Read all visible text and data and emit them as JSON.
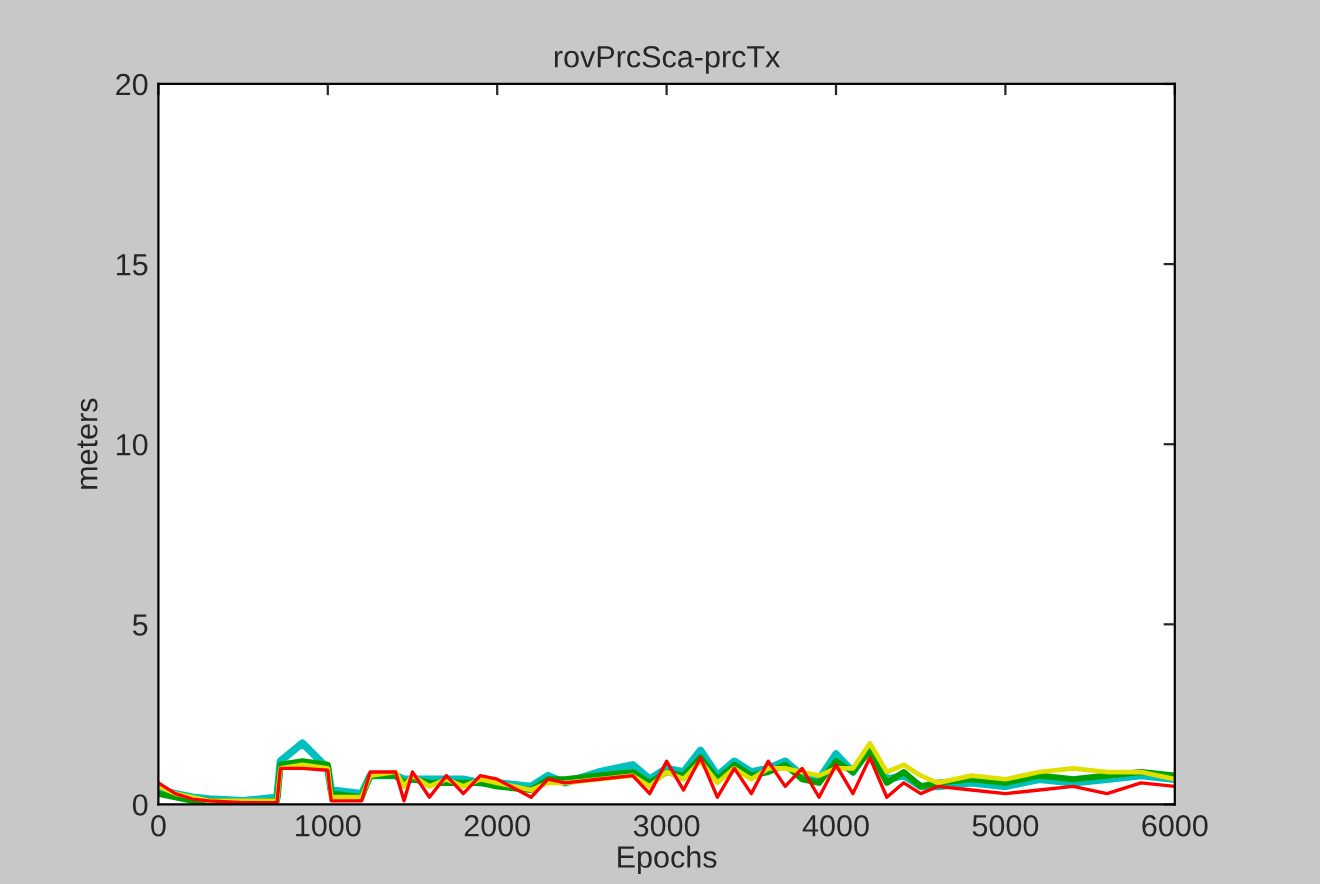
{
  "chart_data": {
    "type": "line",
    "title": "rovPrcSca-prcTx",
    "xlabel": "Epochs",
    "ylabel": "meters",
    "x": [
      0,
      100,
      200,
      300,
      500,
      700,
      720,
      850,
      1000,
      1020,
      1200,
      1250,
      1400,
      1450,
      1500,
      1600,
      1700,
      1800,
      1900,
      2000,
      2200,
      2300,
      2400,
      2600,
      2800,
      2900,
      3000,
      3100,
      3200,
      3300,
      3400,
      3500,
      3600,
      3700,
      3800,
      3900,
      4000,
      4100,
      4200,
      4300,
      4400,
      4500,
      4600,
      4800,
      5000,
      5200,
      5400,
      5600,
      5800,
      6000
    ],
    "series": [
      {
        "color": "#00bfbf",
        "values": [
          0.4,
          0.3,
          0.2,
          0.15,
          0.1,
          0.2,
          1.2,
          1.7,
          1.0,
          0.4,
          0.3,
          0.8,
          0.8,
          0.7,
          0.7,
          0.7,
          0.7,
          0.7,
          0.6,
          0.6,
          0.5,
          0.8,
          0.6,
          0.9,
          1.1,
          0.7,
          1.0,
          0.9,
          1.5,
          0.8,
          1.2,
          0.9,
          1.0,
          1.2,
          0.8,
          0.7,
          1.4,
          0.9,
          1.6,
          0.7,
          0.8,
          0.5,
          0.5,
          0.6,
          0.5,
          0.7,
          0.6,
          0.7,
          0.8,
          0.7
        ]
      },
      {
        "color": "#00a000",
        "values": [
          0.3,
          0.2,
          0.1,
          0.1,
          0.05,
          0.1,
          1.1,
          1.2,
          1.1,
          0.3,
          0.2,
          0.8,
          0.8,
          0.6,
          0.7,
          0.6,
          0.6,
          0.6,
          0.6,
          0.5,
          0.4,
          0.7,
          0.7,
          0.8,
          0.9,
          0.6,
          0.9,
          0.8,
          1.3,
          0.7,
          1.1,
          0.8,
          0.9,
          1.1,
          0.7,
          0.6,
          1.2,
          0.9,
          1.5,
          0.6,
          0.9,
          0.5,
          0.6,
          0.7,
          0.6,
          0.8,
          0.7,
          0.8,
          0.9,
          0.8
        ]
      },
      {
        "color": "#e0e000",
        "values": [
          0.5,
          0.3,
          0.2,
          0.1,
          0.1,
          0.1,
          1.0,
          1.1,
          1.0,
          0.2,
          0.2,
          0.8,
          0.9,
          0.5,
          0.8,
          0.5,
          0.7,
          0.5,
          0.7,
          0.6,
          0.4,
          0.6,
          0.6,
          0.7,
          0.8,
          0.5,
          0.9,
          0.7,
          1.2,
          0.6,
          1.0,
          0.7,
          1.0,
          1.0,
          0.9,
          0.8,
          1.0,
          1.0,
          1.7,
          0.9,
          1.1,
          0.8,
          0.6,
          0.8,
          0.7,
          0.9,
          1.0,
          0.9,
          0.9,
          0.7
        ]
      },
      {
        "color": "#ff0000",
        "values": [
          0.6,
          0.3,
          0.15,
          0.1,
          0.05,
          0.05,
          1.0,
          1.0,
          0.95,
          0.1,
          0.1,
          0.9,
          0.9,
          0.1,
          0.9,
          0.2,
          0.8,
          0.3,
          0.8,
          0.7,
          0.2,
          0.7,
          0.6,
          0.7,
          0.8,
          0.3,
          1.2,
          0.4,
          1.3,
          0.2,
          1.0,
          0.3,
          1.2,
          0.5,
          1.0,
          0.2,
          1.1,
          0.3,
          1.3,
          0.2,
          0.6,
          0.3,
          0.5,
          0.4,
          0.3,
          0.4,
          0.5,
          0.3,
          0.6,
          0.5
        ]
      }
    ],
    "xlim": [
      0,
      6000
    ],
    "xticks": [
      0,
      1000,
      2000,
      3000,
      4000,
      5000,
      6000
    ],
    "ylim": [
      0,
      20
    ],
    "yticks": [
      0,
      5,
      10,
      15,
      20
    ],
    "grid": false,
    "marker": "none",
    "line_style": "solid"
  }
}
